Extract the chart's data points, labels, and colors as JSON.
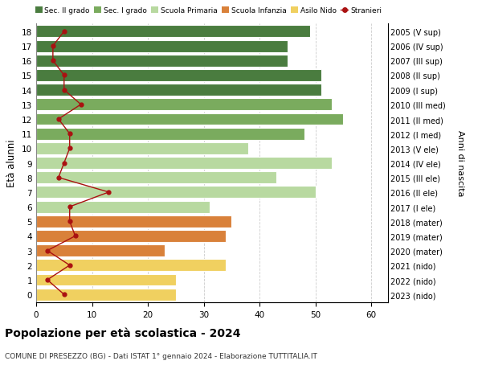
{
  "ages": [
    18,
    17,
    16,
    15,
    14,
    13,
    12,
    11,
    10,
    9,
    8,
    7,
    6,
    5,
    4,
    3,
    2,
    1,
    0
  ],
  "bar_values": [
    49,
    45,
    45,
    51,
    51,
    53,
    55,
    48,
    38,
    53,
    43,
    50,
    31,
    35,
    34,
    23,
    34,
    25,
    25
  ],
  "stranieri": [
    5,
    3,
    3,
    5,
    5,
    8,
    4,
    6,
    6,
    5,
    4,
    13,
    6,
    6,
    7,
    2,
    6,
    2,
    5
  ],
  "right_labels": [
    "2005 (V sup)",
    "2006 (IV sup)",
    "2007 (III sup)",
    "2008 (II sup)",
    "2009 (I sup)",
    "2010 (III med)",
    "2011 (II med)",
    "2012 (I med)",
    "2013 (V ele)",
    "2014 (IV ele)",
    "2015 (III ele)",
    "2016 (II ele)",
    "2017 (I ele)",
    "2018 (mater)",
    "2019 (mater)",
    "2020 (mater)",
    "2021 (nido)",
    "2022 (nido)",
    "2023 (nido)"
  ],
  "bar_colors": [
    "#4a7c3f",
    "#4a7c3f",
    "#4a7c3f",
    "#4a7c3f",
    "#4a7c3f",
    "#7aab5e",
    "#7aab5e",
    "#7aab5e",
    "#b8d9a0",
    "#b8d9a0",
    "#b8d9a0",
    "#b8d9a0",
    "#b8d9a0",
    "#d9813a",
    "#d9813a",
    "#d9813a",
    "#f0d060",
    "#f0d060",
    "#f0d060"
  ],
  "legend_colors": [
    "#4a7c3f",
    "#7aab5e",
    "#b8d9a0",
    "#d9813a",
    "#f0d060"
  ],
  "legend_labels": [
    "Sec. II grado",
    "Sec. I grado",
    "Scuola Primaria",
    "Scuola Infanzia",
    "Asilo Nido",
    "Stranieri"
  ],
  "ylabel": "Età alunni",
  "right_ylabel": "Anni di nascita",
  "title": "Popolazione per età scolastica - 2024",
  "subtitle": "COMUNE DI PRESEZZO (BG) - Dati ISTAT 1° gennaio 2024 - Elaborazione TUTTITALIA.IT",
  "xlim": [
    0,
    63
  ],
  "stranieri_color": "#aa1111",
  "bg_color": "#ffffff",
  "grid_color": "#cccccc",
  "bar_height": 0.82
}
